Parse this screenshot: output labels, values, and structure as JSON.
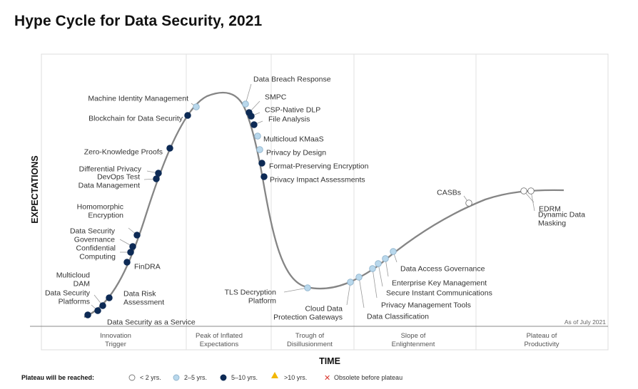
{
  "title": "Hype Cycle for Data Security, 2021",
  "y_axis_label": "EXPECTATIONS",
  "x_axis_label": "TIME",
  "as_of": "As of July 2021",
  "colors": {
    "dark": "#0d2a55",
    "light": "#b9d8ec",
    "white": "#ffffff",
    "curve": "#808080",
    "yellow": "#f2b705",
    "red": "#d9342b"
  },
  "phases": [
    [
      "Innovation",
      "Trigger"
    ],
    [
      "Peak of Inflated",
      "Expectations"
    ],
    [
      "Trough of",
      "Disillusionment"
    ],
    [
      "Slope of",
      "Enlightenment"
    ],
    [
      "Plateau of",
      "Productivity"
    ]
  ],
  "legend": {
    "heading": "Plateau will be reached:",
    "items": [
      {
        "marker": "white",
        "label": "< 2 yrs."
      },
      {
        "marker": "light",
        "label": "2–5 yrs."
      },
      {
        "marker": "dark",
        "label": "5–10 yrs."
      },
      {
        "marker": "triangle",
        "label": ">10 yrs."
      },
      {
        "marker": "cross",
        "label": "Obsolete before plateau"
      }
    ]
  },
  "technologies": [
    {
      "lines": [
        "Data Security as a Service"
      ],
      "time_to_plateau": "5–10 yrs."
    },
    {
      "lines": [
        "Data Security",
        "Platforms"
      ],
      "time_to_plateau": "5–10 yrs."
    },
    {
      "lines": [
        "Multicloud",
        "DAM"
      ],
      "time_to_plateau": "5–10 yrs."
    },
    {
      "lines": [
        "Data Risk",
        "Assessment"
      ],
      "time_to_plateau": "5–10 yrs."
    },
    {
      "lines": [
        "FinDRA"
      ],
      "time_to_plateau": "5–10 yrs."
    },
    {
      "lines": [
        "Confidential",
        "Computing"
      ],
      "time_to_plateau": "5–10 yrs."
    },
    {
      "lines": [
        "Data Security",
        "Governance"
      ],
      "time_to_plateau": "5–10 yrs."
    },
    {
      "lines": [
        "Homomorphic",
        "Encryption"
      ],
      "time_to_plateau": "5–10 yrs."
    },
    {
      "lines": [
        "DevOps Test",
        "Data Management"
      ],
      "time_to_plateau": "5–10 yrs."
    },
    {
      "lines": [
        "Differential Privacy"
      ],
      "time_to_plateau": "5–10 yrs."
    },
    {
      "lines": [
        "Zero-Knowledge Proofs"
      ],
      "time_to_plateau": "5–10 yrs."
    },
    {
      "lines": [
        "Blockchain for Data Security"
      ],
      "time_to_plateau": "5–10 yrs."
    },
    {
      "lines": [
        "Machine Identity Management"
      ],
      "time_to_plateau": "2–5 yrs."
    },
    {
      "lines": [
        "Data Breach Response"
      ],
      "time_to_plateau": "2–5 yrs."
    },
    {
      "lines": [
        "SMPC"
      ],
      "time_to_plateau": "5–10 yrs."
    },
    {
      "lines": [
        "CSP-Native DLP"
      ],
      "time_to_plateau": "5–10 yrs."
    },
    {
      "lines": [
        "File Analysis"
      ],
      "time_to_plateau": "5–10 yrs."
    },
    {
      "lines": [
        "Multicloud KMaaS"
      ],
      "time_to_plateau": "2–5 yrs."
    },
    {
      "lines": [
        "Privacy by Design"
      ],
      "time_to_plateau": "2–5 yrs."
    },
    {
      "lines": [
        "Format-Preserving Encryption"
      ],
      "time_to_plateau": "5–10 yrs."
    },
    {
      "lines": [
        "Privacy Impact Assessments"
      ],
      "time_to_plateau": "5–10 yrs."
    },
    {
      "lines": [
        "TLS Decryption",
        "Platform"
      ],
      "time_to_plateau": "2–5 yrs."
    },
    {
      "lines": [
        "Cloud Data",
        "Protection Gateways"
      ],
      "time_to_plateau": "2–5 yrs."
    },
    {
      "lines": [
        "Data Classification"
      ],
      "time_to_plateau": "2–5 yrs."
    },
    {
      "lines": [
        "Privacy Management Tools"
      ],
      "time_to_plateau": "2–5 yrs."
    },
    {
      "lines": [
        "Secure Instant Communications"
      ],
      "time_to_plateau": "2–5 yrs."
    },
    {
      "lines": [
        "Enterprise Key Management"
      ],
      "time_to_plateau": "2–5 yrs."
    },
    {
      "lines": [
        "Data Access Governance"
      ],
      "time_to_plateau": "2–5 yrs."
    },
    {
      "lines": [
        "CASBs"
      ],
      "time_to_plateau": "< 2 yrs."
    },
    {
      "lines": [
        "EDRM"
      ],
      "time_to_plateau": "< 2 yrs."
    },
    {
      "lines": [
        "Dynamic Data",
        "Masking"
      ],
      "time_to_plateau": "< 2 yrs."
    }
  ]
}
